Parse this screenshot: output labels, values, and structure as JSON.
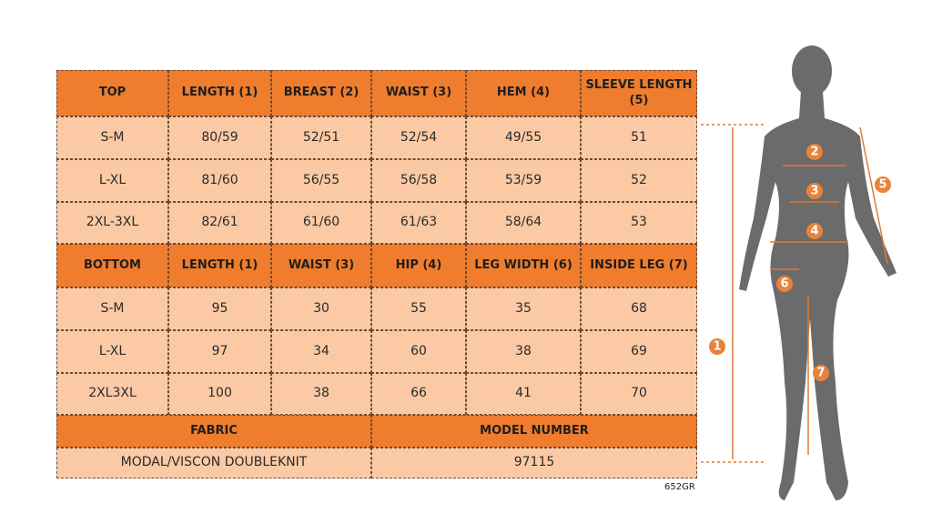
{
  "top_table": {
    "header": [
      "TOP",
      "LENGTH (1)",
      "BREAST (2)",
      "WAIST (3)",
      "HEM (4)",
      "SLEEVE LENGTH (5)"
    ],
    "rows": [
      [
        "S-M",
        "80/59",
        "52/51",
        "52/54",
        "49/55",
        "51"
      ],
      [
        "L-XL",
        "81/60",
        "56/55",
        "56/58",
        "53/59",
        "52"
      ],
      [
        "2XL-3XL",
        "82/61",
        "61/60",
        "61/63",
        "58/64",
        "53"
      ]
    ]
  },
  "bottom_table": {
    "header": [
      "BOTTOM",
      "LENGTH (1)",
      "WAIST (3)",
      "HIP (4)",
      "LEG WIDTH (6)",
      "INSIDE LEG (7)"
    ],
    "rows": [
      [
        "S-M",
        "95",
        "30",
        "55",
        "35",
        "68"
      ],
      [
        "L-XL",
        "97",
        "34",
        "60",
        "38",
        "69"
      ],
      [
        "2XL3XL",
        "100",
        "38",
        "66",
        "41",
        "70"
      ]
    ]
  },
  "footer": {
    "headers": [
      "FABRIC",
      "MODEL NUMBER"
    ],
    "values": [
      "MODAL/VISCON DOUBLEKNIT",
      "97115"
    ]
  },
  "code": "652GR",
  "markers": [
    "1",
    "2",
    "3",
    "4",
    "5",
    "6",
    "7"
  ]
}
